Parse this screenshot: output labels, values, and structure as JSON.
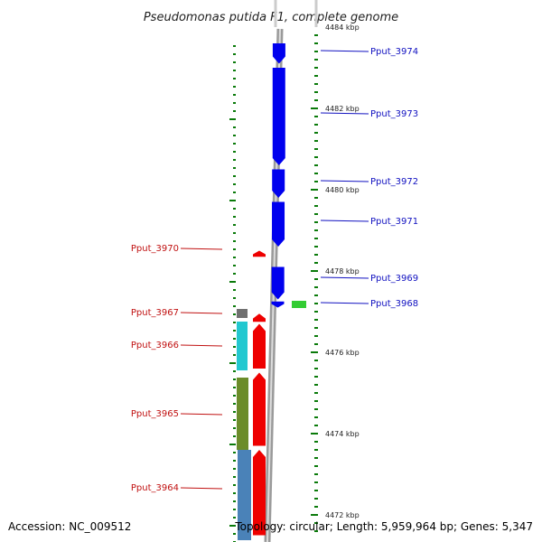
{
  "title": "Pseudomonas putida F1, complete genome",
  "footer": {
    "accession": "Accession: NC_009512",
    "summary": "Topology: circular; Length: 5,959,964 bp; Genes: 5,347"
  },
  "colors": {
    "forward_cds": "#0000ee",
    "reverse_cds": "#ee0000",
    "forward_label": "#1010c0",
    "reverse_label": "#c01010",
    "tick": "#0a7a0a",
    "backbone": "#9a9a9a",
    "green_feature": "#33cc33",
    "gray_feature": "#707070",
    "cyan_feature": "#22c8d0",
    "olive_feature": "#6b8c2a",
    "steel_feature": "#4a82b8"
  },
  "scale_labels": [
    {
      "kbp": 4484,
      "text": "4484 kbp"
    },
    {
      "kbp": 4482,
      "text": "4482 kbp"
    },
    {
      "kbp": 4480,
      "text": "4480 kbp"
    },
    {
      "kbp": 4478,
      "text": "4478 kbp"
    },
    {
      "kbp": 4476,
      "text": "4476 kbp"
    },
    {
      "kbp": 4474,
      "text": "4474 kbp"
    },
    {
      "kbp": 4472,
      "text": "4472 kbp"
    }
  ],
  "forward_genes": [
    {
      "name": "Pput_3974",
      "start_kbp": 4483.1,
      "end_kbp": 4483.6
    },
    {
      "name": "Pput_3973",
      "start_kbp": 4480.6,
      "end_kbp": 4483.0
    },
    {
      "name": "Pput_3972",
      "start_kbp": 4479.8,
      "end_kbp": 4480.5
    },
    {
      "name": "Pput_3971",
      "start_kbp": 4478.6,
      "end_kbp": 4479.7
    },
    {
      "name": "Pput_3969",
      "start_kbp": 4477.3,
      "end_kbp": 4478.1
    },
    {
      "name": "Pput_3968",
      "start_kbp": 4477.1,
      "end_kbp": 4477.25
    }
  ],
  "reverse_genes": [
    {
      "name": "Pput_3970",
      "start_kbp": 4478.35,
      "end_kbp": 4478.5
    },
    {
      "name": "Pput_3967",
      "start_kbp": 4476.75,
      "end_kbp": 4476.95
    },
    {
      "name": "Pput_3966",
      "start_kbp": 4475.6,
      "end_kbp": 4476.7
    },
    {
      "name": "Pput_3965",
      "start_kbp": 4473.7,
      "end_kbp": 4475.5
    },
    {
      "name": "Pput_3964",
      "start_kbp": 4471.5,
      "end_kbp": 4473.6
    }
  ]
}
